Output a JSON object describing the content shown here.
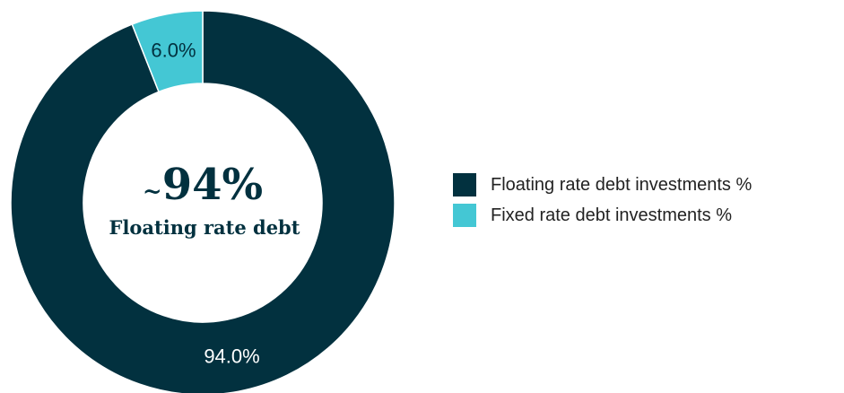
{
  "chart_data": {
    "type": "pie",
    "donut": true,
    "slices": [
      {
        "name": "Floating rate debt investments %",
        "value": 94.0,
        "label": "94.0%",
        "color": "#02313f",
        "label_color": "#ffffff"
      },
      {
        "name": "Fixed rate debt investments %",
        "value": 6.0,
        "label": "6.0%",
        "color": "#44c7d4",
        "label_color": "#02313f"
      }
    ],
    "center_text": {
      "tilde": "~",
      "value": "94%",
      "subtitle": "Floating rate debt"
    },
    "legend_position": "right"
  }
}
